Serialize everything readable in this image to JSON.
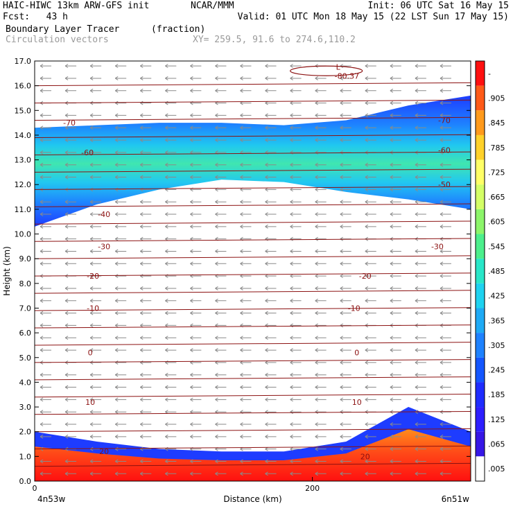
{
  "header": {
    "line1_left": "HAIC-HIWC 13km ARW-GFS init",
    "line1_mid": "NCAR/MMM",
    "line1_right": "Init: 06 UTC Sat 16 May 15",
    "fcst": "Fcst:   43 h",
    "valid": "Valid: 01 UTC Mon 18 May 15 (22 LST Sun 17 May 15)",
    "field": "Boundary Layer Tracer",
    "field_units": "(fraction)",
    "overlay": "Circulation vectors",
    "xy": "XY= 259.5, 91.6 to 274.6,110.2"
  },
  "colors": {
    "isotherm": "#8b1010",
    "vector": "#8a8a8a"
  },
  "chart_data": {
    "type": "heatmap",
    "xlabel": "Distance (km)",
    "ylabel": "Height (km)",
    "xlim": [
      0,
      314
    ],
    "ylim": [
      0,
      17
    ],
    "x_ticks": [
      {
        "value": 0,
        "label": "0"
      },
      {
        "value": 200,
        "label": "200"
      }
    ],
    "x_end_labels": {
      "left": "4n53w",
      "right": "6n51w"
    },
    "y_ticks": [
      {
        "value": 0,
        "label": "0.0"
      },
      {
        "value": 1,
        "label": "1.0"
      },
      {
        "value": 2,
        "label": "2.0"
      },
      {
        "value": 3,
        "label": "3.0"
      },
      {
        "value": 4,
        "label": "4.0"
      },
      {
        "value": 5,
        "label": "5.0"
      },
      {
        "value": 6,
        "label": "6.0"
      },
      {
        "value": 7,
        "label": "7.0"
      },
      {
        "value": 8,
        "label": "8.0"
      },
      {
        "value": 9,
        "label": "9.0"
      },
      {
        "value": 10,
        "label": "10.0"
      },
      {
        "value": 11,
        "label": "11.0"
      },
      {
        "value": 12,
        "label": "12.0"
      },
      {
        "value": 13,
        "label": "13.0"
      },
      {
        "value": 14,
        "label": "14.0"
      },
      {
        "value": 15,
        "label": "15.0"
      },
      {
        "value": 16,
        "label": "16.0"
      },
      {
        "value": 17,
        "label": "17.0"
      }
    ],
    "colorbar": {
      "labels": [
        "-",
        ".905",
        ".845",
        ".785",
        ".725",
        ".665",
        ".605",
        ".545",
        ".485",
        ".425",
        ".365",
        ".305",
        ".245",
        ".185",
        ".125",
        ".065",
        ".005"
      ],
      "colors": [
        "#ff1010",
        "#ff5a18",
        "#ff9a1c",
        "#ffd12a",
        "#ffff66",
        "#d4ff66",
        "#8cf56a",
        "#4cef8c",
        "#28e6c8",
        "#1ed2f0",
        "#1eaaf5",
        "#1e82ff",
        "#1456ff",
        "#1e2cff",
        "#2d1eff",
        "#3616e6",
        "#ffffff"
      ]
    },
    "tracer_layers": [
      {
        "name": "upper",
        "base": [
          10.3,
          11.2,
          11.8,
          12.2,
          12.1,
          11.7,
          11.4,
          11.0
        ],
        "top": [
          14.3,
          14.4,
          14.5,
          14.5,
          14.4,
          14.6,
          15.2,
          15.6
        ]
      },
      {
        "name": "boundary",
        "top": [
          2.0,
          1.6,
          1.3,
          1.2,
          1.2,
          1.6,
          3.0,
          2.0
        ]
      }
    ],
    "isotherm_labels": [
      {
        "text": "-70",
        "x": 25,
        "y": 14.5
      },
      {
        "text": "-70",
        "x": 295,
        "y": 14.6
      },
      {
        "text": "-60",
        "x": 38,
        "y": 13.3
      },
      {
        "text": "-60",
        "x": 295,
        "y": 13.4
      },
      {
        "text": "-50",
        "x": 295,
        "y": 12.0
      },
      {
        "text": "-40",
        "x": 50,
        "y": 10.8
      },
      {
        "text": "-30",
        "x": 50,
        "y": 9.5
      },
      {
        "text": "-30",
        "x": 290,
        "y": 9.5
      },
      {
        "text": "-20",
        "x": 42,
        "y": 8.3
      },
      {
        "text": "-20",
        "x": 238,
        "y": 8.3
      },
      {
        "text": "-10",
        "x": 42,
        "y": 7.0
      },
      {
        "text": "-10",
        "x": 230,
        "y": 7.0
      },
      {
        "text": "0",
        "x": 40,
        "y": 5.2
      },
      {
        "text": "0",
        "x": 232,
        "y": 5.2
      },
      {
        "text": "10",
        "x": 40,
        "y": 3.2
      },
      {
        "text": "10",
        "x": 232,
        "y": 3.2
      },
      {
        "text": "20",
        "x": 50,
        "y": 1.2
      },
      {
        "text": "20",
        "x": 238,
        "y": 1.0
      }
    ],
    "low_marker": {
      "letter": "L",
      "value": "-80.37",
      "x": 210,
      "y": 16.6
    }
  }
}
